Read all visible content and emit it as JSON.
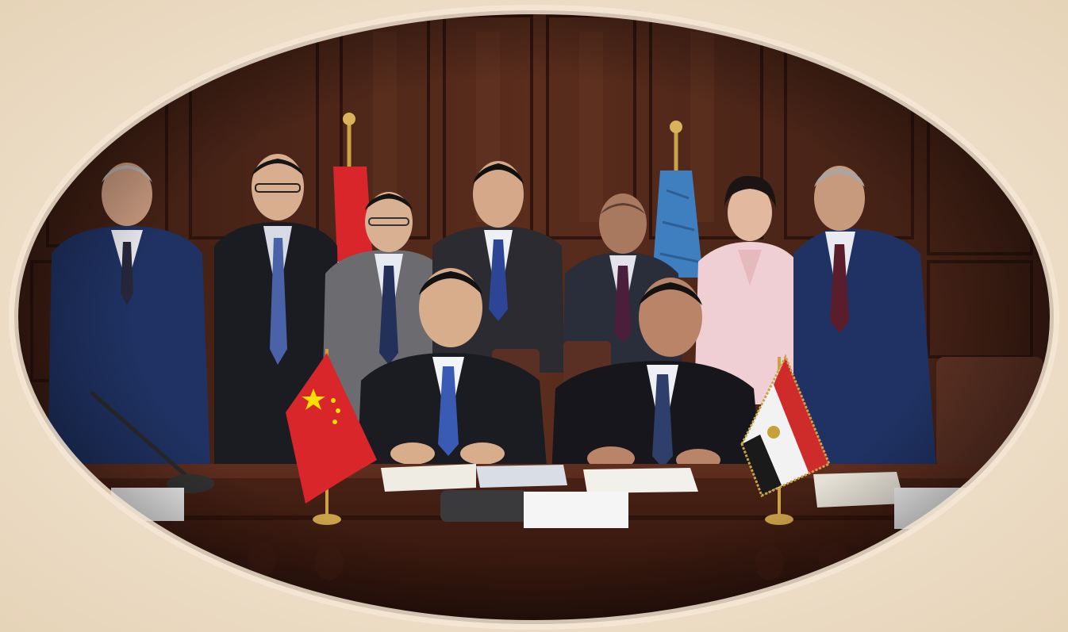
{
  "photo": {
    "subject": "signing-ceremony",
    "frame_shape": "oval",
    "colors": {
      "background_paper": "#efe1cc",
      "wood_panel": "#4a2418",
      "wood_panel_dark": "#2f150d",
      "table_wood": "#3a1a10",
      "china_flag": "#d8262b",
      "egypt_flag_red": "#ce2b2b",
      "egypt_flag_black": "#1a1a1a",
      "un_style_flag": "#3f7fbf",
      "suit_navy": "#1f3263",
      "suit_black": "#1b1b1f",
      "suit_gray": "#6b6b70"
    },
    "placards": [
      "",
      "",
      "",
      ""
    ]
  }
}
